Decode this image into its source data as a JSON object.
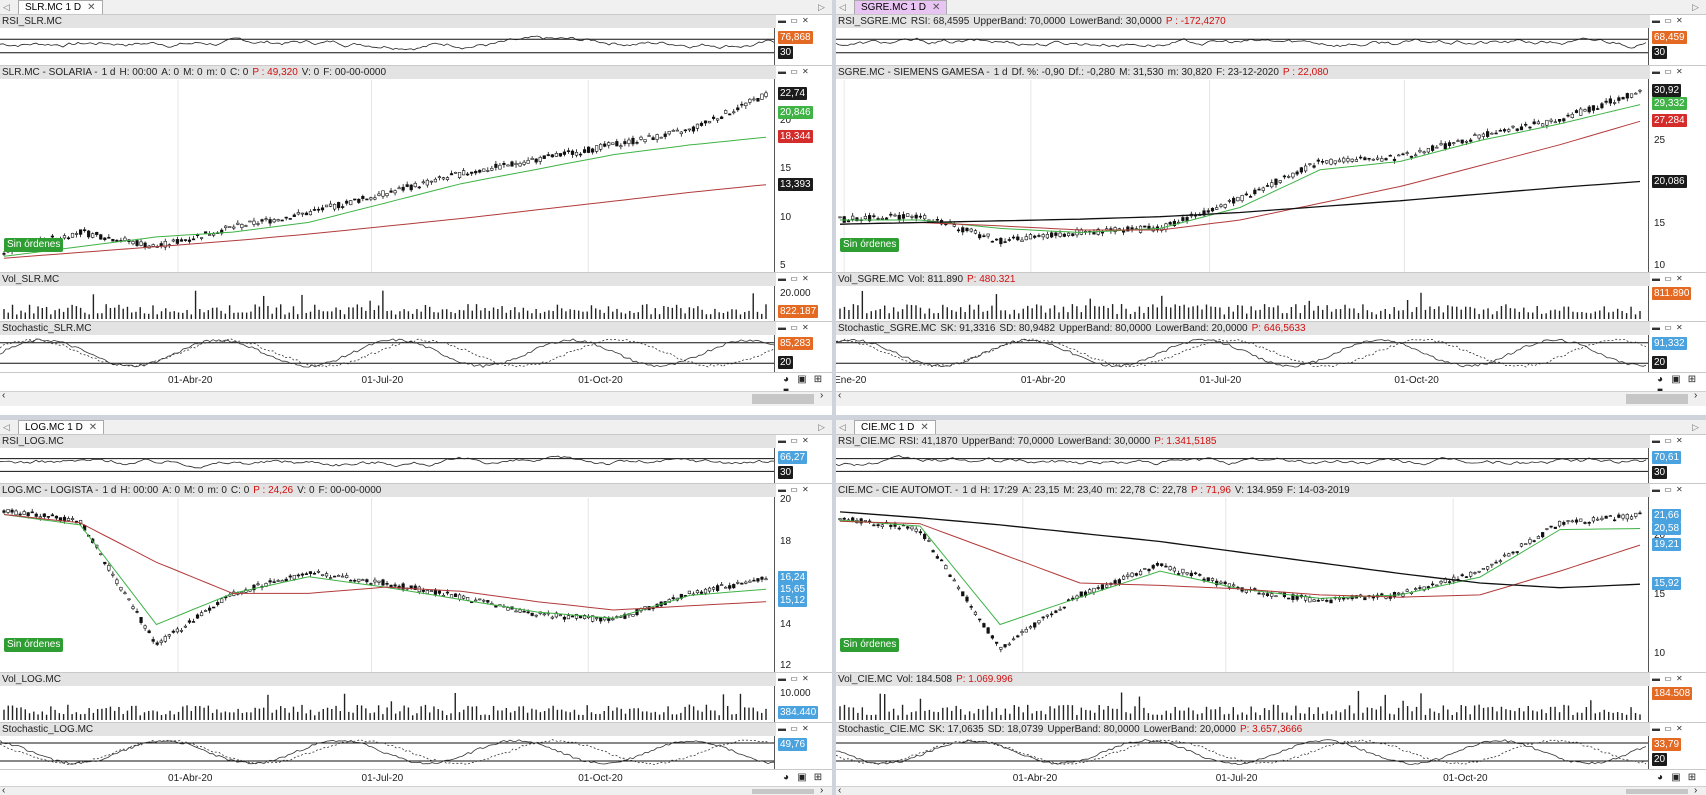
{
  "panes": [
    {
      "tab": "SLR.MC 1 D",
      "active": false,
      "rsi": {
        "title": [
          "RSI_SLR.MC"
        ],
        "tags": [
          {
            "text": "76,868",
            "color": "#e46a24"
          },
          {
            "text": "30",
            "color": "#1b1b1b"
          }
        ]
      },
      "price": {
        "title": [
          "SLR.MC - SOLARIA -",
          "1 d",
          "H: 00:00",
          "A: 0",
          "M: 0",
          "m: 0",
          "C: 0"
        ],
        "title_red": "P : 49,320",
        "title_tail": [
          "V: 0",
          "F: 00-00-0000"
        ],
        "yticks": [
          "22,74",
          "20",
          "15",
          "10",
          "5"
        ],
        "tags": [
          {
            "text": "22,74",
            "color": "#1b1b1b"
          },
          {
            "text": "20,846",
            "color": "#3fb346"
          },
          {
            "text": "18,344",
            "color": "#d42b2b"
          },
          {
            "text": "13,393",
            "color": "#1b1b1b"
          }
        ]
      },
      "vol": {
        "title": [
          "Vol_SLR.MC"
        ],
        "tags": [
          {
            "text": "20.000",
            "color": "#ffffff"
          },
          {
            "text": "822.187",
            "color": "#e46a24"
          }
        ]
      },
      "stoch": {
        "title": [
          "Stochastic_SLR.MC"
        ],
        "tags": [
          {
            "text": "85,283",
            "color": "#e46a24"
          },
          {
            "text": "20",
            "color": "#1b1b1b"
          }
        ]
      },
      "xlabels": [
        "01-Abr-20",
        "01-Jul-20",
        "01-Oct-20"
      ]
    },
    {
      "tab": "SGRE.MC 1 D",
      "active": true,
      "rsi": {
        "title": [
          "RSI_SGRE.MC",
          "RSI: 68,4595",
          "UpperBand: 70,0000",
          "LowerBand: 30,0000"
        ],
        "title_red": "P : -172,4270",
        "tags": [
          {
            "text": "68,459",
            "color": "#e46a24"
          },
          {
            "text": "30",
            "color": "#1b1b1b"
          }
        ]
      },
      "price": {
        "title": [
          "SGRE.MC - SIEMENS GAMESA -",
          "1 d",
          "Df. %: -0,90",
          "Df.: -0,280",
          "M: 31,530",
          "m: 30,820",
          "F: 23-12-2020"
        ],
        "title_red": "P : 22,080",
        "title_tail": [],
        "yticks": [
          "30",
          "25",
          "20",
          "15",
          "10"
        ],
        "tags": [
          {
            "text": "30,92",
            "color": "#1b1b1b"
          },
          {
            "text": "29,332",
            "color": "#3fb346"
          },
          {
            "text": "27,284",
            "color": "#d42b2b"
          },
          {
            "text": "20,086",
            "color": "#1b1b1b"
          }
        ]
      },
      "vol": {
        "title": [
          "Vol_SGRE.MC",
          "Vol: 811.890"
        ],
        "title_red": "P: 480.321",
        "tags": [
          {
            "text": "811.890",
            "color": "#e46a24"
          }
        ]
      },
      "stoch": {
        "title": [
          "Stochastic_SGRE.MC",
          "SK: 91,3316",
          "SD: 80,9482",
          "UpperBand: 80,0000",
          "LowerBand: 20,0000"
        ],
        "title_red": "P: 646,5633",
        "tags": [
          {
            "text": "91,332",
            "color": "#4aa3df"
          },
          {
            "text": "20",
            "color": "#1b1b1b"
          }
        ]
      },
      "xlabels": [
        "Ene-20",
        "01-Abr-20",
        "01-Jul-20",
        "01-Oct-20"
      ]
    },
    {
      "tab": "LOG.MC 1 D",
      "active": false,
      "rsi": {
        "title": [
          "RSI_LOG.MC"
        ],
        "tags": [
          {
            "text": "66,27",
            "color": "#4aa3df"
          },
          {
            "text": "30",
            "color": "#1b1b1b"
          }
        ]
      },
      "price": {
        "title": [
          "LOG.MC - LOGISTA -",
          "1 d",
          "H: 00:00",
          "A: 0",
          "M: 0",
          "m: 0",
          "C: 0"
        ],
        "title_red": "P : 24,26",
        "title_tail": [
          "V: 0",
          "F: 00-00-0000"
        ],
        "yticks": [
          "20",
          "18",
          "16",
          "14",
          "12"
        ],
        "tags": [
          {
            "text": "16,24",
            "color": "#4aa3df"
          },
          {
            "text": "15,65",
            "color": "#4aa3df"
          },
          {
            "text": "15,12",
            "color": "#4aa3df"
          }
        ]
      },
      "vol": {
        "title": [
          "Vol_LOG.MC"
        ],
        "tags": [
          {
            "text": "10.000",
            "color": "#ffffff"
          },
          {
            "text": "384.440",
            "color": "#4aa3df"
          }
        ]
      },
      "stoch": {
        "title": [
          "Stochastic_LOG.MC"
        ],
        "tags": [
          {
            "text": "49,76",
            "color": "#4aa3df"
          }
        ]
      },
      "xlabels": [
        "01-Abr-20",
        "01-Jul-20",
        "01-Oct-20"
      ]
    },
    {
      "tab": "CIE.MC 1 D",
      "active": false,
      "rsi": {
        "title": [
          "RSI_CIE.MC",
          "RSI: 41,1870",
          "UpperBand: 70,0000",
          "LowerBand: 30,0000"
        ],
        "title_red": "P: 1.341,5185",
        "tags": [
          {
            "text": "70,61",
            "color": "#4aa3df"
          },
          {
            "text": "30",
            "color": "#1b1b1b"
          }
        ]
      },
      "price": {
        "title": [
          "CIE.MC - CIE AUTOMOT. -",
          "1 d",
          "H: 17:29",
          "A: 23,15",
          "M: 23,40",
          "m: 22,78",
          "C: 22,78"
        ],
        "title_red": "P : 71,96",
        "title_tail": [
          "V: 134.959",
          "F: 14-03-2019"
        ],
        "yticks": [
          "20",
          "15",
          "10"
        ],
        "tags": [
          {
            "text": "21,66",
            "color": "#4aa3df"
          },
          {
            "text": "20,58",
            "color": "#4aa3df"
          },
          {
            "text": "19,21",
            "color": "#4aa3df"
          },
          {
            "text": "15,92",
            "color": "#4aa3df"
          }
        ]
      },
      "vol": {
        "title": [
          "Vol_CIE.MC",
          "Vol: 184.508"
        ],
        "title_red": "P: 1.069.996",
        "tags": [
          {
            "text": "184.508",
            "color": "#e46a24"
          }
        ]
      },
      "stoch": {
        "title": [
          "Stochastic_CIE.MC",
          "SK: 17,0635",
          "SD: 18,0739",
          "UpperBand: 80,0000",
          "LowerBand: 20,0000"
        ],
        "title_red": "P: 3.657,3666",
        "tags": [
          {
            "text": "33,79",
            "color": "#e46a24"
          },
          {
            "text": "20",
            "color": "#1b1b1b"
          }
        ]
      },
      "xlabels": [
        "01-Abr-20",
        "01-Jul-20",
        "01-Oct-20"
      ]
    }
  ],
  "orders_label": "Sin órdenes",
  "chart_data": [
    {
      "type": "line",
      "ticker": "SLR.MC",
      "x_ticks": [
        "01-Abr-20",
        "01-Jul-20",
        "01-Oct-20"
      ],
      "ylim": [
        5,
        24
      ],
      "series": [
        {
          "values": [
            6.5,
            8.5,
            7.0,
            9.0,
            10.5,
            12.5,
            14.5,
            16.0,
            17.5,
            19.0,
            22.7
          ]
        },
        {
          "values": [
            6.0,
            7.0,
            8.0,
            8.5,
            9.5,
            11.5,
            13.5,
            15.0,
            16.5,
            17.5,
            18.3
          ]
        },
        {
          "values": [
            5.8,
            6.4,
            7.0,
            7.6,
            8.3,
            9.1,
            9.9,
            10.8,
            11.7,
            12.6,
            13.4
          ]
        }
      ]
    },
    {
      "type": "line",
      "ticker": "SGRE.MC",
      "x_ticks": [
        "Ene-20",
        "01-Abr-20",
        "01-Jul-20",
        "01-Oct-20"
      ],
      "ylim": [
        10,
        32
      ],
      "series": [
        {
          "values": [
            15.5,
            16.0,
            13.0,
            14.0,
            14.5,
            18.0,
            22.5,
            23.0,
            25.5,
            27.5,
            30.9
          ]
        },
        {
          "values": [
            15.5,
            15.5,
            14.5,
            14.0,
            14.5,
            17.0,
            21.5,
            22.5,
            25.0,
            27.0,
            29.3
          ]
        },
        {
          "values": [
            15.0,
            15.2,
            14.8,
            14.3,
            14.3,
            15.5,
            17.5,
            19.5,
            22.0,
            24.5,
            27.3
          ]
        },
        {
          "values": [
            15.0,
            15.2,
            15.4,
            15.6,
            15.9,
            16.4,
            17.1,
            17.8,
            18.6,
            19.4,
            20.1
          ]
        }
      ]
    },
    {
      "type": "line",
      "ticker": "LOG.MC",
      "x_ticks": [
        "01-Abr-20",
        "01-Jul-20",
        "01-Oct-20"
      ],
      "ylim": [
        12,
        20
      ],
      "series": [
        {
          "values": [
            19.5,
            19.0,
            13.0,
            15.5,
            16.5,
            16.0,
            15.3,
            14.5,
            14.2,
            15.5,
            16.2
          ]
        },
        {
          "values": [
            19.3,
            18.8,
            14.0,
            15.5,
            16.3,
            15.8,
            15.2,
            14.6,
            14.3,
            15.4,
            15.7
          ]
        },
        {
          "values": [
            19.3,
            18.9,
            17.0,
            15.5,
            15.5,
            15.8,
            15.6,
            15.1,
            14.7,
            14.9,
            15.1
          ]
        }
      ]
    },
    {
      "type": "line",
      "ticker": "CIE.MC",
      "x_ticks": [
        "01-Abr-20",
        "01-Jul-20",
        "01-Oct-20"
      ],
      "ylim": [
        9,
        23
      ],
      "series": [
        {
          "values": [
            21.5,
            20.5,
            10.5,
            15.0,
            17.5,
            15.5,
            14.5,
            15.0,
            17.0,
            21.0,
            21.7
          ]
        },
        {
          "values": [
            21.3,
            20.8,
            12.5,
            14.8,
            17.0,
            15.5,
            14.7,
            15.0,
            16.5,
            20.5,
            20.6
          ]
        },
        {
          "values": [
            21.2,
            21.0,
            18.5,
            16.0,
            15.8,
            15.5,
            15.0,
            14.8,
            15.0,
            17.0,
            19.2
          ]
        },
        {
          "values": [
            22.0,
            21.5,
            20.9,
            20.2,
            19.5,
            18.6,
            17.7,
            16.8,
            16.0,
            15.6,
            15.9
          ]
        }
      ]
    }
  ]
}
